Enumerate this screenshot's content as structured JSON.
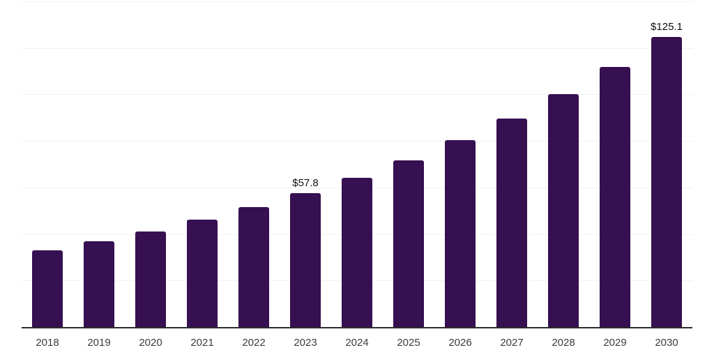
{
  "chart_data": {
    "type": "bar",
    "title": "",
    "xlabel": "",
    "ylabel": "",
    "categories": [
      "2018",
      "2019",
      "2020",
      "2021",
      "2022",
      "2023",
      "2024",
      "2025",
      "2026",
      "2027",
      "2028",
      "2029",
      "2030"
    ],
    "values": [
      33.3,
      37.2,
      41.5,
      46.4,
      51.8,
      57.8,
      64.5,
      72.1,
      80.5,
      89.9,
      100.3,
      112.0,
      125.1
    ],
    "data_labels": {
      "2023": "$57.8",
      "2030": "$125.1"
    },
    "ylim": [
      0,
      140
    ],
    "grid_step": 20,
    "grid": "horizontal",
    "legend_position": "none",
    "colors": {
      "bar": "#361050",
      "axis_line": "#2b2b2b",
      "gridline": "#f1f1f1",
      "value_label": "#111111",
      "tick_label": "#3b3b3b",
      "background": "#ffffff"
    }
  }
}
